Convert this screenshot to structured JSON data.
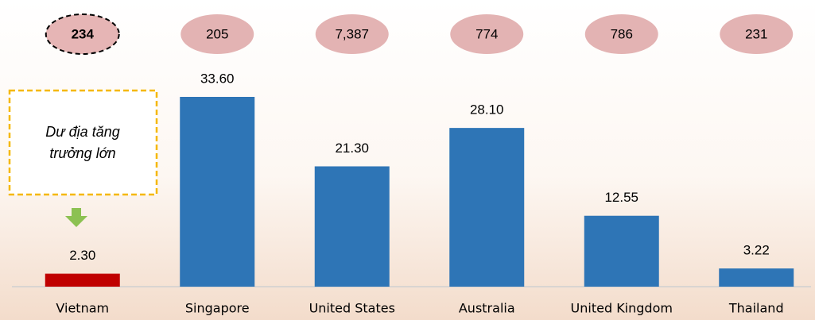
{
  "chart_data": {
    "type": "bar",
    "categories": [
      "Vietnam",
      "Singapore",
      "United States",
      "Australia",
      "United Kingdom",
      "Thailand"
    ],
    "values": [
      2.3,
      33.6,
      21.3,
      28.1,
      12.55,
      3.22
    ],
    "value_labels": [
      "2.30",
      "33.60",
      "21.30",
      "28.10",
      "12.55",
      "3.22"
    ],
    "colors": [
      "#c00000",
      "#2e75b6",
      "#2e75b6",
      "#2e75b6",
      "#2e75b6",
      "#2e75b6"
    ],
    "bubbles": [
      {
        "value": 234,
        "label": "234"
      },
      {
        "value": 205,
        "label": "205"
      },
      {
        "value": 7387,
        "label": "7,387"
      },
      {
        "value": 774,
        "label": "774"
      },
      {
        "value": 786,
        "label": "786"
      },
      {
        "value": 231,
        "label": "231"
      }
    ],
    "annotation": [
      "Dư địa tăng",
      "trưởng lớn"
    ],
    "ylim": [
      0,
      33.6
    ]
  }
}
